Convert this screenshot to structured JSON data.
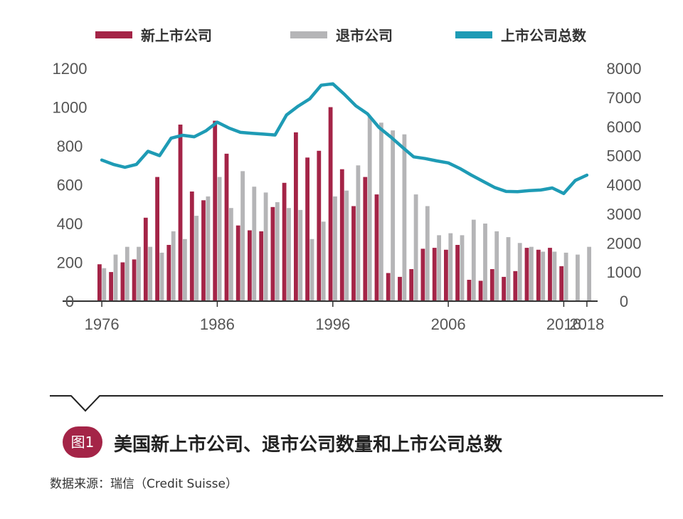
{
  "colors": {
    "new_listings": "#a42447",
    "delistings": "#b5b5b7",
    "total": "#1e9bb5",
    "axis": "#333333",
    "badge": "#a42447"
  },
  "chart_data": {
    "type": "bar",
    "title": "美国新上市公司、退市公司数量和上市公司总数",
    "x": [
      1976,
      1977,
      1978,
      1979,
      1980,
      1981,
      1982,
      1983,
      1984,
      1985,
      1986,
      1987,
      1988,
      1989,
      1990,
      1991,
      1992,
      1993,
      1994,
      1995,
      1996,
      1997,
      1998,
      1999,
      2000,
      2001,
      2002,
      2003,
      2004,
      2005,
      2006,
      2007,
      2008,
      2009,
      2010,
      2011,
      2012,
      2013,
      2014,
      2015,
      2016,
      2017,
      2018
    ],
    "x_tick_labels": [
      "1976",
      "1986",
      "1996",
      "2006",
      "2016",
      "2018"
    ],
    "x_tick_values": [
      1976,
      1986,
      1996,
      2006,
      2016,
      2018
    ],
    "xlim": [
      1975.5,
      2018.5
    ],
    "left_axis": {
      "ylim": [
        0,
        1200
      ],
      "ticks": [
        "0",
        "200",
        "400",
        "600",
        "800",
        "1000",
        "1200"
      ]
    },
    "right_axis": {
      "ylim": [
        0,
        8000
      ],
      "ticks": [
        "0",
        "1000",
        "2000",
        "3000",
        "4000",
        "5000",
        "6000",
        "7000",
        "8000"
      ]
    },
    "legend_position": "top",
    "grid": false,
    "series": [
      {
        "name": "新上市公司",
        "type": "bar",
        "axis": "left",
        "values": [
          190,
          150,
          200,
          215,
          430,
          640,
          290,
          910,
          565,
          520,
          930,
          760,
          390,
          365,
          360,
          485,
          610,
          870,
          740,
          775,
          1000,
          680,
          490,
          640,
          550,
          145,
          125,
          165,
          270,
          275,
          265,
          290,
          110,
          105,
          165,
          125,
          155,
          275,
          265,
          275,
          180,
          null,
          null
        ]
      },
      {
        "name": "退市公司",
        "type": "bar",
        "axis": "left",
        "values": [
          170,
          240,
          280,
          280,
          280,
          250,
          360,
          320,
          440,
          540,
          640,
          480,
          670,
          590,
          560,
          510,
          480,
          470,
          320,
          410,
          540,
          570,
          700,
          950,
          920,
          880,
          860,
          550,
          490,
          340,
          350,
          340,
          420,
          400,
          360,
          330,
          300,
          280,
          255,
          255,
          250,
          240,
          280
        ]
      },
      {
        "name": "上市公司总数",
        "type": "line",
        "axis": "right",
        "values": [
          4850,
          4700,
          4600,
          4700,
          5150,
          5000,
          5600,
          5700,
          5650,
          5850,
          6150,
          5950,
          5800,
          5770,
          5740,
          5710,
          6400,
          6700,
          6950,
          7420,
          7470,
          7110,
          6710,
          6440,
          5970,
          5650,
          5300,
          4960,
          4900,
          4820,
          4750,
          4560,
          4330,
          4120,
          3910,
          3770,
          3760,
          3800,
          3820,
          3890,
          3700,
          4150,
          4330
        ]
      }
    ]
  },
  "caption": {
    "badge": "图1",
    "title": "美国新上市公司、退市公司数量和上市公司总数",
    "source": "数据来源：瑞信（Credit Suisse）"
  }
}
